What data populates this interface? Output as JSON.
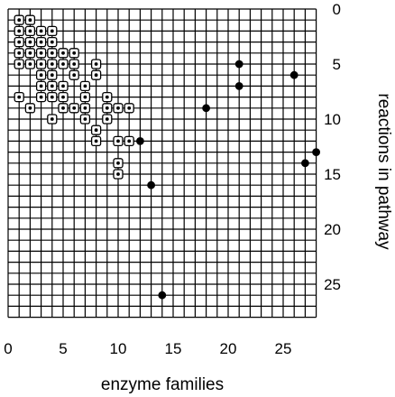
{
  "chart_data": {
    "type": "scatter",
    "title": "",
    "xlabel": "enzyme families",
    "ylabel": "reactions in pathway",
    "xlim": [
      0,
      28
    ],
    "ylim": [
      0,
      28
    ],
    "y_inverted": true,
    "y_axis_side": "right",
    "grid": true,
    "grid_step": 1,
    "xticks": [
      "0",
      "5",
      "10",
      "15",
      "20",
      "25"
    ],
    "yticks": [
      "0",
      "5",
      "10",
      "15",
      "20",
      "25"
    ],
    "marker_colors": {
      "open": "#ffffff",
      "filled": "#000000"
    },
    "series": [
      {
        "marker": "open",
        "points": [
          [
            1,
            1
          ],
          [
            2,
            1
          ],
          [
            1,
            2
          ],
          [
            2,
            2
          ],
          [
            3,
            2
          ],
          [
            4,
            2
          ],
          [
            1,
            3
          ],
          [
            2,
            3
          ],
          [
            3,
            3
          ],
          [
            4,
            3
          ],
          [
            1,
            4
          ],
          [
            2,
            4
          ],
          [
            3,
            4
          ],
          [
            4,
            4
          ],
          [
            5,
            4
          ],
          [
            6,
            4
          ],
          [
            1,
            5
          ],
          [
            2,
            5
          ],
          [
            3,
            5
          ],
          [
            4,
            5
          ],
          [
            5,
            5
          ],
          [
            6,
            5
          ],
          [
            8,
            5
          ],
          [
            3,
            6
          ],
          [
            4,
            6
          ],
          [
            6,
            6
          ],
          [
            8,
            6
          ],
          [
            3,
            7
          ],
          [
            4,
            7
          ],
          [
            5,
            7
          ],
          [
            7,
            7
          ],
          [
            1,
            8
          ],
          [
            3,
            8
          ],
          [
            4,
            8
          ],
          [
            5,
            8
          ],
          [
            7,
            8
          ],
          [
            9,
            8
          ],
          [
            2,
            9
          ],
          [
            5,
            9
          ],
          [
            6,
            9
          ],
          [
            7,
            9
          ],
          [
            9,
            9
          ],
          [
            10,
            9
          ],
          [
            11,
            9
          ],
          [
            4,
            10
          ],
          [
            7,
            10
          ],
          [
            9,
            10
          ],
          [
            8,
            11
          ],
          [
            8,
            12
          ],
          [
            10,
            12
          ],
          [
            11,
            12
          ],
          [
            10,
            14
          ],
          [
            10,
            15
          ]
        ]
      },
      {
        "marker": "filled",
        "points": [
          [
            21,
            5
          ],
          [
            26,
            6
          ],
          [
            21,
            7
          ],
          [
            18,
            9
          ],
          [
            12,
            12
          ],
          [
            28,
            13
          ],
          [
            27,
            14
          ],
          [
            13,
            16
          ],
          [
            14,
            26
          ]
        ]
      }
    ]
  }
}
